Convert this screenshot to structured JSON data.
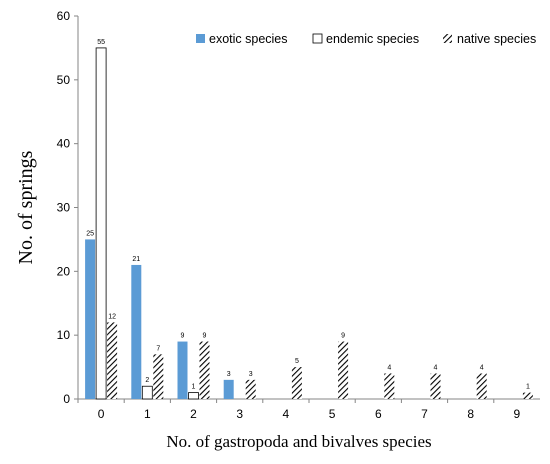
{
  "chart_data": {
    "type": "bar",
    "title": "",
    "xlabel": "No. of gastropoda and bivalves species",
    "ylabel": "No. of springs",
    "ylim": [
      0,
      60
    ],
    "yticks": [
      0,
      10,
      20,
      30,
      40,
      50,
      60
    ],
    "categories": [
      "0",
      "1",
      "2",
      "3",
      "4",
      "5",
      "6",
      "7",
      "8",
      "9"
    ],
    "legend_position": "top-right",
    "grid": false,
    "series": [
      {
        "name": "exotic species",
        "color": "#5b9bd5",
        "pattern": "solid",
        "values": [
          25,
          21,
          9,
          3,
          null,
          null,
          null,
          null,
          null,
          null
        ]
      },
      {
        "name": "endemic species",
        "color": "#ffffff",
        "pattern": "outline",
        "values": [
          55,
          2,
          1,
          null,
          null,
          null,
          null,
          null,
          null,
          null
        ]
      },
      {
        "name": "native species",
        "color": "#000000",
        "pattern": "diagonal-hatch",
        "values": [
          12,
          7,
          9,
          3,
          5,
          9,
          4,
          4,
          4,
          1
        ]
      }
    ]
  }
}
